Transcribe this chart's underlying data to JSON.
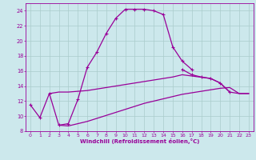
{
  "background_color": "#cce8ec",
  "grid_color": "#aacccc",
  "line_color": "#990099",
  "xlabel": "Windchill (Refroidissement éolien,°C)",
  "xlim": [
    -0.5,
    23.5
  ],
  "ylim": [
    8,
    25
  ],
  "yticks": [
    8,
    10,
    12,
    14,
    16,
    18,
    20,
    22,
    24
  ],
  "xticks": [
    0,
    1,
    2,
    3,
    4,
    5,
    6,
    7,
    8,
    9,
    10,
    11,
    12,
    13,
    14,
    15,
    16,
    17,
    18,
    19,
    20,
    21,
    22,
    23
  ],
  "curve1_x": [
    0,
    1,
    2,
    3,
    4,
    5,
    6,
    7,
    8,
    9,
    10,
    11,
    12,
    13,
    14,
    15,
    16,
    17
  ],
  "curve1_y": [
    11.5,
    9.8,
    13.0,
    8.8,
    9.0,
    12.2,
    16.5,
    18.5,
    21.0,
    23.0,
    24.2,
    24.2,
    24.2,
    24.0,
    23.5,
    19.2,
    17.3,
    16.2
  ],
  "curve2_x": [
    2,
    3,
    4,
    5,
    6,
    7,
    8,
    9,
    10,
    11,
    12,
    13,
    14,
    15,
    16,
    19,
    20,
    21,
    22,
    23
  ],
  "curve2_y": [
    13.0,
    13.2,
    13.2,
    13.3,
    13.4,
    13.6,
    13.8,
    14.0,
    14.2,
    14.4,
    14.6,
    14.8,
    15.0,
    15.2,
    15.5,
    15.0,
    14.4,
    13.2,
    13.0,
    13.0
  ],
  "curve3_x": [
    3,
    4,
    5,
    6,
    7,
    8,
    9,
    10,
    11,
    12,
    13,
    14,
    15,
    16,
    17,
    18,
    19,
    20,
    21,
    22,
    23
  ],
  "curve3_y": [
    8.8,
    8.7,
    9.0,
    9.3,
    9.7,
    10.1,
    10.5,
    10.9,
    11.3,
    11.7,
    12.0,
    12.3,
    12.6,
    12.9,
    13.1,
    13.3,
    13.5,
    13.7,
    13.8,
    13.0,
    13.0
  ],
  "curve4_x": [
    16,
    17,
    18,
    19,
    20,
    21
  ],
  "curve4_y": [
    16.2,
    15.5,
    15.2,
    15.0,
    14.4,
    13.2
  ],
  "lw": 0.9,
  "ms": 3.5
}
